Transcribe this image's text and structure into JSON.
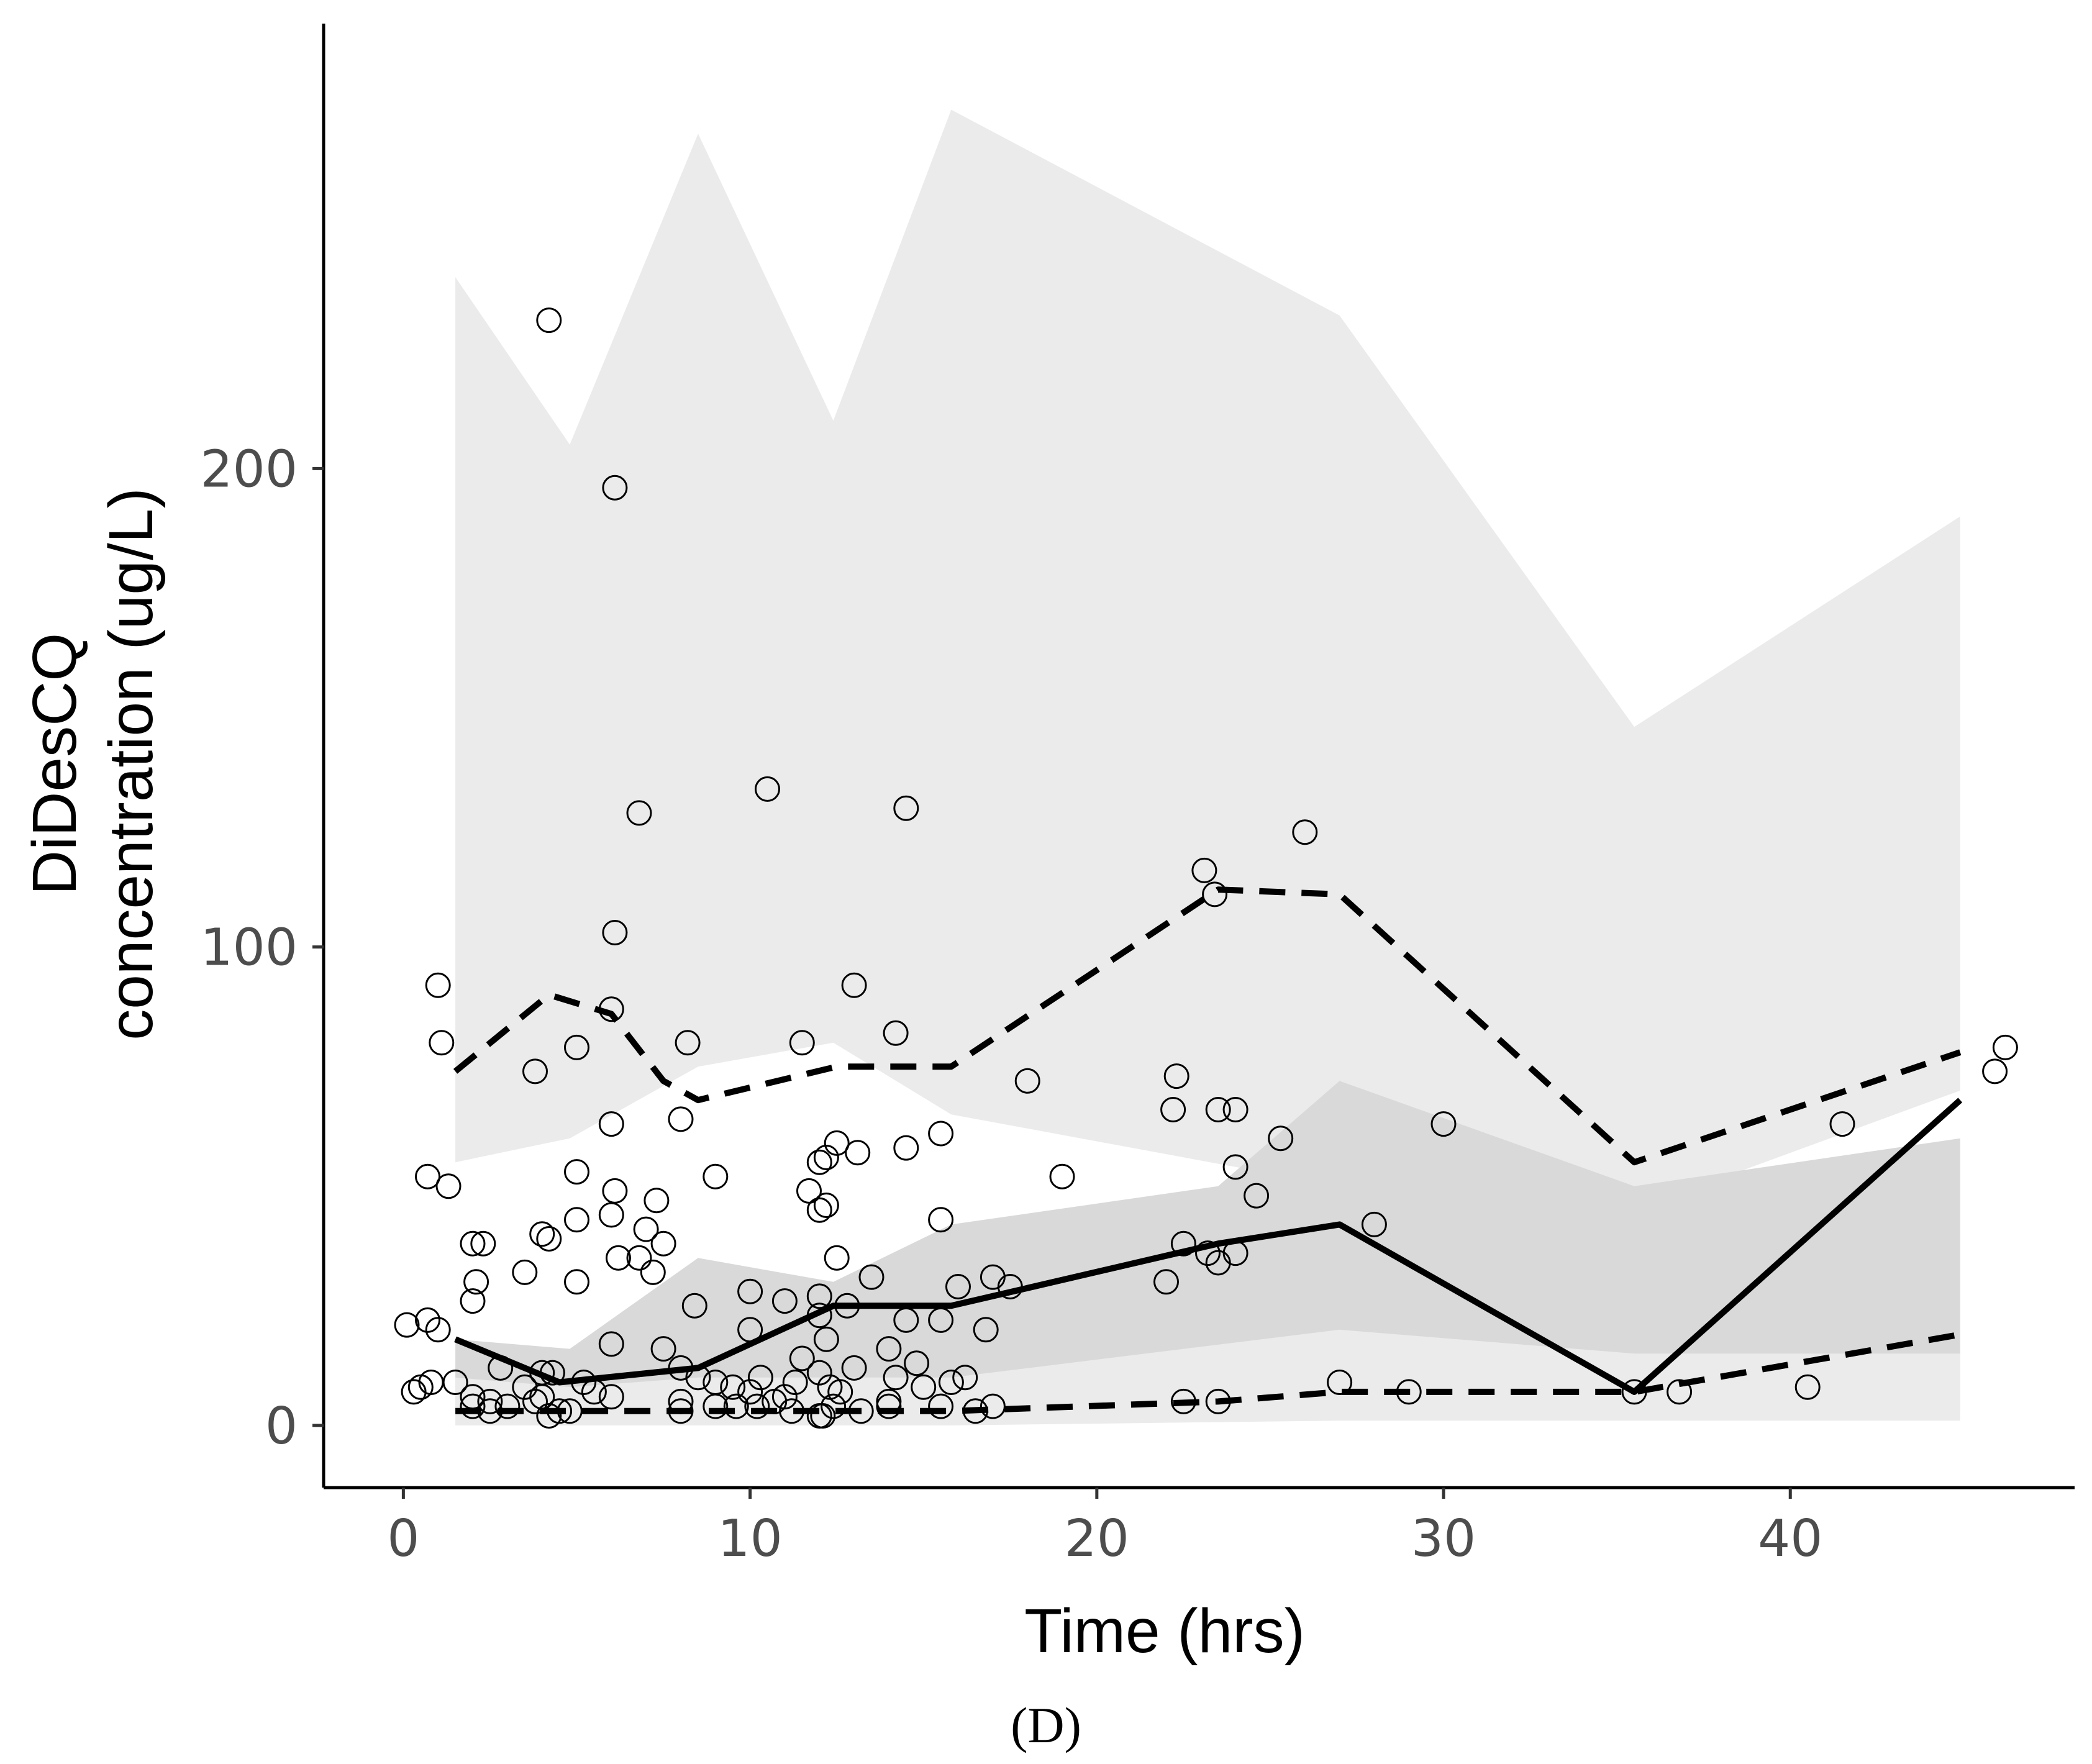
{
  "chart_data": {
    "type": "scatter",
    "title": "",
    "panel_label": "(D)",
    "xlabel": "Time (hrs)",
    "ylabel_lines": [
      "DiDesCQ",
      "concentration (ug/L)"
    ],
    "xlim": [
      -2.3,
      48.2
    ],
    "ylim": [
      -13,
      293
    ],
    "x_ticks": [
      0,
      10,
      20,
      30,
      40
    ],
    "y_ticks": [
      0,
      100,
      200
    ],
    "grid": false,
    "colors": {
      "outer_band": "#ebebeb",
      "inner_band": "#d9d9d9",
      "lines": "#000000",
      "points": "#000000",
      "tick_text": "#4d4d4d"
    },
    "bands": [
      {
        "name": "upper-percentile-interval",
        "x": [
          1.5,
          4.8,
          8.5,
          12.4,
          15.8,
          27.0,
          35.5,
          44.9
        ],
        "lower": [
          55,
          60,
          75,
          80,
          65,
          50,
          45,
          70
        ],
        "upper": [
          240,
          205,
          270,
          210,
          275,
          232,
          146,
          190
        ]
      },
      {
        "name": "median-interval",
        "x": [
          1.5,
          4.8,
          8.5,
          12.4,
          15.8,
          23.5,
          27.0,
          35.5,
          44.9
        ],
        "lower": [
          2,
          3,
          3,
          3,
          3,
          3,
          4,
          3,
          3
        ],
        "upper": [
          18,
          16,
          35,
          30,
          42,
          50,
          72,
          50,
          60
        ]
      },
      {
        "name": "lower-percentile-interval",
        "x": [
          1.5,
          4.8,
          8.5,
          12.4,
          15.8,
          27.0,
          35.5,
          44.9
        ],
        "lower": [
          0,
          0,
          0,
          0,
          0,
          1,
          1,
          1
        ],
        "upper": [
          10,
          8,
          10,
          10,
          10,
          20,
          15,
          15
        ]
      }
    ],
    "series": [
      {
        "name": "observed-95th-percentile",
        "style": "dashed",
        "x": [
          1.5,
          4.2,
          6.0,
          7.5,
          8.5,
          12.5,
          15.8,
          23.5,
          27.0,
          35.5,
          44.9
        ],
        "values": [
          74,
          90,
          86,
          72,
          68,
          75,
          75,
          112,
          111,
          55,
          78
        ]
      },
      {
        "name": "observed-median",
        "style": "solid",
        "x": [
          1.5,
          4.5,
          8.5,
          12.4,
          15.8,
          23.5,
          27.0,
          35.5,
          44.9
        ],
        "values": [
          18,
          9,
          12,
          25,
          25,
          38,
          42,
          7,
          68
        ]
      },
      {
        "name": "observed-5th-percentile",
        "style": "dashed",
        "x": [
          1.5,
          4.5,
          8.5,
          12.4,
          15.8,
          23.5,
          27.0,
          35.5,
          44.9
        ],
        "values": [
          3,
          3,
          3,
          3,
          3,
          5,
          7,
          7,
          19
        ]
      }
    ],
    "points": {
      "x": [
        4.2,
        6.1,
        10.5,
        6.8,
        14.5,
        26.0,
        23.1,
        23.4,
        6.1,
        1.0,
        1.1,
        6.0,
        3.8,
        5.0,
        8.2,
        11.5,
        13.0,
        14.2,
        18.0,
        6.0,
        8.0,
        22.2,
        22.3,
        23.5,
        24.0,
        30.0,
        41.5,
        45.9,
        46.2,
        0.7,
        1.3,
        5.0,
        6.1,
        7.3,
        9.0,
        12.0,
        12.2,
        12.5,
        13.1,
        14.5,
        15.5,
        19.0,
        24.0,
        24.6,
        25.3,
        28.0,
        2.0,
        4.0,
        5.0,
        6.0,
        7.0,
        7.5,
        11.7,
        12.0,
        12.2,
        15.5,
        2.1,
        2.3,
        3.5,
        4.2,
        5.0,
        6.2,
        6.8,
        7.2,
        8.4,
        10.0,
        11.0,
        12.0,
        12.5,
        13.5,
        14.5,
        16.0,
        17.0,
        17.5,
        22.0,
        22.5,
        23.2,
        23.5,
        24.0,
        0.1,
        0.7,
        1.0,
        2.0,
        4.0,
        6.0,
        7.5,
        8.0,
        10.0,
        11.5,
        12.0,
        12.2,
        12.8,
        14.0,
        14.8,
        15.5,
        16.8,
        0.3,
        0.5,
        0.8,
        1.5,
        2.0,
        2.5,
        2.8,
        3.5,
        4.0,
        4.3,
        5.2,
        5.5,
        8.0,
        8.5,
        9.0,
        9.5,
        10.0,
        10.3,
        11.0,
        11.3,
        12.0,
        12.3,
        12.6,
        13.0,
        14.2,
        15.0,
        15.8,
        16.2,
        2.0,
        2.5,
        3.0,
        3.8,
        4.2,
        4.5,
        4.8,
        8.0,
        9.0,
        9.6,
        10.7,
        11.2,
        12.0,
        12.4,
        14.0,
        15.5,
        16.5,
        17.0,
        22.5,
        23.5,
        27.0,
        29.0,
        35.5,
        36.8,
        40.5,
        6.0,
        10.2,
        12.1,
        13.2,
        14.0
      ],
      "y": [
        231,
        196,
        133,
        128,
        129,
        124,
        116,
        111,
        103,
        92,
        80,
        87,
        74,
        79,
        80,
        80,
        92,
        82,
        72,
        63,
        64,
        66,
        73,
        66,
        66,
        63,
        63,
        74,
        79,
        52,
        50,
        53,
        49,
        47,
        52,
        55,
        56,
        59,
        57,
        58,
        61,
        52,
        54,
        48,
        60,
        42,
        38,
        40,
        43,
        44,
        41,
        38,
        49,
        45,
        46,
        43,
        30,
        38,
        32,
        39,
        30,
        35,
        35,
        32,
        25,
        28,
        26,
        27,
        35,
        31,
        22,
        29,
        31,
        29,
        30,
        38,
        36,
        34,
        36,
        21,
        22,
        20,
        26,
        11,
        17,
        16,
        12,
        20,
        14,
        23,
        18,
        25,
        16,
        13,
        22,
        20,
        7,
        8,
        9,
        9,
        6,
        5,
        12,
        8,
        6,
        11,
        9,
        7,
        5,
        10,
        9,
        8,
        7,
        10,
        6,
        9,
        11,
        8,
        7,
        12,
        10,
        8,
        9,
        10,
        4,
        3,
        4,
        5,
        2,
        3,
        3,
        3,
        4,
        4,
        5,
        3,
        2,
        4,
        5,
        4,
        3,
        4,
        5,
        5,
        9,
        7,
        7,
        7,
        8,
        6,
        4,
        2,
        3,
        4
      ]
    }
  }
}
